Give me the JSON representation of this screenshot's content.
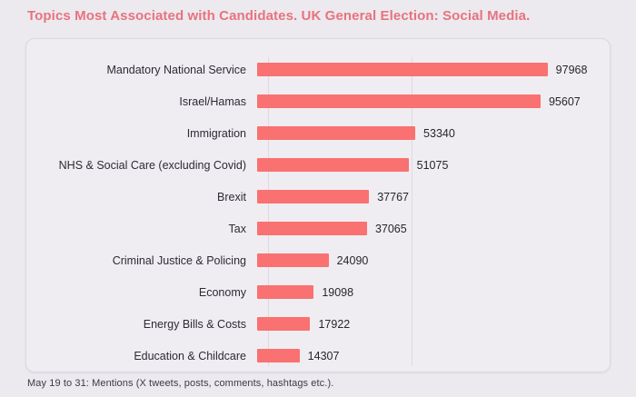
{
  "page": {
    "title": "Topics Most Associated with Candidates. UK General Election: Social Media.",
    "footnote": "May 19 to 31: Mentions (X tweets, posts, comments, hashtags etc.)."
  },
  "colors": {
    "page_background": "#ece9ef",
    "card_background": "#f0edf2",
    "card_border": "#ddd7df",
    "bar_fill": "#f97170",
    "title_text": "#e8737d",
    "label_text": "#2b2b33",
    "value_text": "#26262c",
    "gridline": "#ded9df",
    "footnote_text": "#3b3b44"
  },
  "chart_data": {
    "type": "bar",
    "orientation": "horizontal",
    "title": "Topics Most Associated with Candidates. UK General Election: Social Media.",
    "categories": [
      "Mandatory National Service",
      "Israel/Hamas",
      "Immigration",
      "NHS & Social Care (excluding Covid)",
      "Brexit",
      "Tax",
      "Criminal Justice & Policing",
      "Economy",
      "Energy Bills & Costs",
      "Education & Childcare"
    ],
    "values": [
      97968,
      95607,
      53340,
      51075,
      37767,
      37065,
      24090,
      19098,
      17922,
      14307
    ],
    "xlabel": "",
    "ylabel": "",
    "xlim": [
      0,
      100000
    ],
    "gridlines_x": [
      0,
      50000
    ],
    "grid": "vertical-faint",
    "legend_position": "none",
    "bar_color": "#f97170",
    "value_labels_shown": true,
    "footnote": "May 19 to 31: Mentions (X tweets, posts, comments, hashtags etc.)."
  }
}
